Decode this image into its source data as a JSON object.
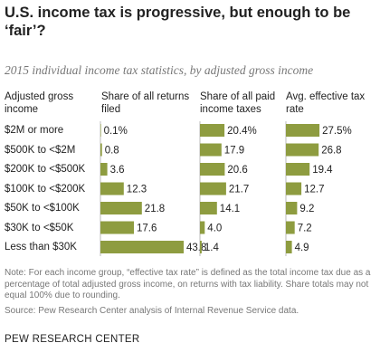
{
  "title": "U.S. income tax is progressive, but enough to be ‘fair’?",
  "subtitle": "2015 individual income tax statistics, by adjusted gross income",
  "columns": {
    "group": "Adjusted gross income",
    "returns": "Share of all returns filed",
    "paid": "Share of all paid income taxes",
    "rate": "Avg. effective tax rate"
  },
  "note": "Note: For each income group, “effective tax rate” is defined as the total income tax due as a percentage of total adjusted gross income, on returns with tax liability. Share totals may not equal 100% due to rounding.",
  "source": "Source: Pew Research Center analysis of Internal Revenue Service data.",
  "brand": "PEW RESEARCH CENTER",
  "colors": {
    "bar": "#8e9c40",
    "axis": "#bbbbbb",
    "text": "#222222",
    "muted": "#777777"
  },
  "chart_data": {
    "type": "bar",
    "categories": [
      "$2M or more",
      "$500K to <$2M",
      "$200K to <$500K",
      "$100K to <$200K",
      "$50K to <$100K",
      "$30K to <$50K",
      "Less than $30K"
    ],
    "series": [
      {
        "name": "Share of all returns filed",
        "values": [
          0.1,
          0.8,
          3.6,
          12.3,
          21.8,
          17.6,
          43.8
        ],
        "labels": [
          "0.1%",
          "0.8",
          "3.6",
          "12.3",
          "21.8",
          "17.6",
          "43.8"
        ]
      },
      {
        "name": "Share of all paid income taxes",
        "values": [
          20.4,
          17.9,
          20.6,
          21.7,
          14.1,
          4.0,
          1.4
        ],
        "labels": [
          "20.4%",
          "17.9",
          "20.6",
          "21.7",
          "14.1",
          "4.0",
          "1.4"
        ]
      },
      {
        "name": "Avg. effective tax rate",
        "values": [
          27.5,
          26.8,
          19.4,
          12.7,
          9.2,
          7.2,
          4.9
        ],
        "labels": [
          "27.5%",
          "26.8",
          "19.4",
          "12.7",
          "9.2",
          "7.2",
          "4.9"
        ]
      }
    ]
  }
}
